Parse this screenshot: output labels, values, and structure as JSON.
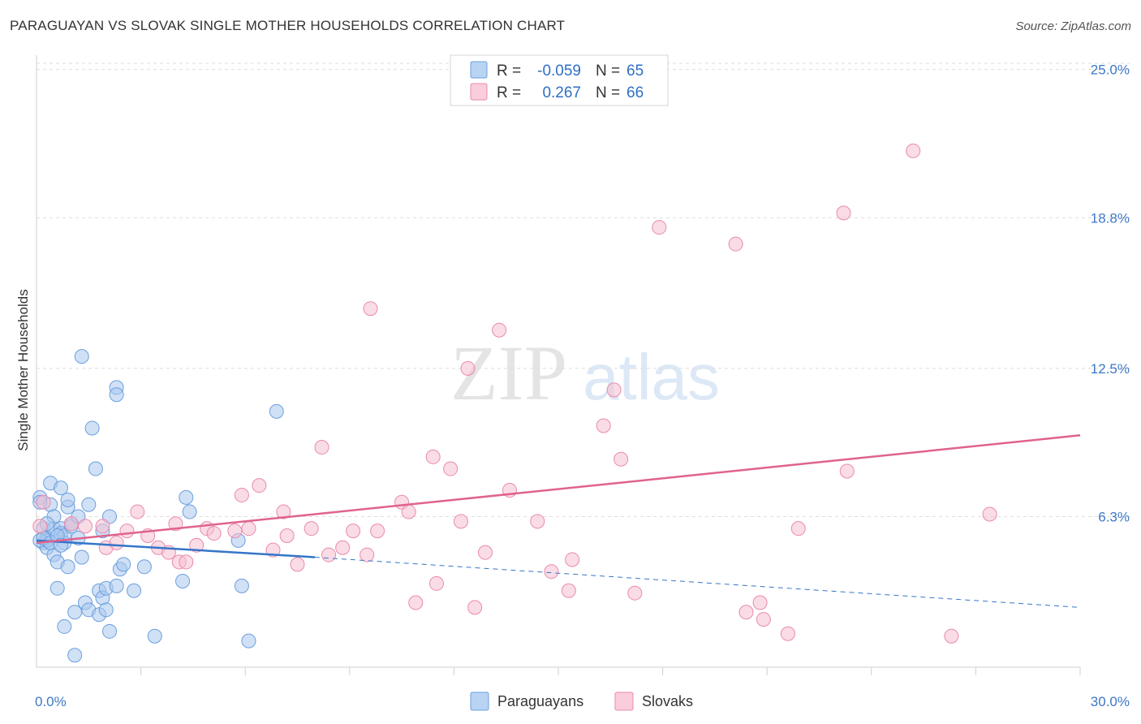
{
  "chart_data": {
    "type": "scatter",
    "title": "PARAGUAYAN VS SLOVAK SINGLE MOTHER HOUSEHOLDS CORRELATION CHART",
    "source": "Source: ZipAtlas.com",
    "ylabel": "Single Mother Households",
    "xlim": [
      0,
      30
    ],
    "ylim": [
      0,
      25.6
    ],
    "x_tick_labels": [
      "0.0%",
      "30.0%"
    ],
    "y_tick_values": [
      6.3,
      12.5,
      18.8,
      25.0
    ],
    "y_tick_labels": [
      "6.3%",
      "12.5%",
      "18.8%",
      "25.0%"
    ],
    "watermark": "ZIPatlas",
    "legend": {
      "entries": [
        {
          "r_label": "R =",
          "r_value": "-0.059",
          "n_label": "N =",
          "n_value": "65"
        },
        {
          "r_label": "R =",
          "r_value": "0.267",
          "n_label": "N =",
          "n_value": "66"
        }
      ]
    },
    "series": [
      {
        "name": "Paraguayans",
        "color": "#a9c8ef",
        "stroke": "#6b9fde",
        "trend_color": "#3475c9",
        "trend": {
          "x0": 0,
          "y0": 5.3,
          "x1": 8.0,
          "y1": 4.6,
          "dash_x1": 30,
          "dash_y1": 2.5
        },
        "points": [
          [
            0.1,
            7.1
          ],
          [
            0.2,
            5.8
          ],
          [
            0.2,
            5.2
          ],
          [
            0.3,
            5.4
          ],
          [
            0.3,
            5.0
          ],
          [
            0.3,
            5.3
          ],
          [
            0.4,
            7.7
          ],
          [
            0.4,
            6.8
          ],
          [
            0.5,
            5.8
          ],
          [
            0.5,
            6.3
          ],
          [
            0.5,
            4.7
          ],
          [
            0.6,
            4.4
          ],
          [
            0.6,
            3.3
          ],
          [
            0.7,
            5.8
          ],
          [
            0.7,
            7.5
          ],
          [
            0.7,
            5.6
          ],
          [
            0.8,
            1.7
          ],
          [
            0.8,
            5.2
          ],
          [
            0.8,
            5.5
          ],
          [
            0.9,
            6.7
          ],
          [
            0.9,
            4.2
          ],
          [
            0.9,
            7.0
          ],
          [
            1.0,
            6.0
          ],
          [
            1.0,
            5.9
          ],
          [
            1.1,
            2.3
          ],
          [
            1.1,
            0.5
          ],
          [
            1.2,
            6.3
          ],
          [
            1.3,
            4.6
          ],
          [
            1.3,
            13.0
          ],
          [
            1.4,
            2.7
          ],
          [
            1.5,
            6.8
          ],
          [
            1.5,
            2.4
          ],
          [
            1.6,
            10.0
          ],
          [
            1.7,
            8.3
          ],
          [
            1.8,
            2.2
          ],
          [
            1.8,
            3.2
          ],
          [
            1.9,
            2.9
          ],
          [
            1.9,
            5.7
          ],
          [
            2.0,
            3.3
          ],
          [
            2.0,
            2.4
          ],
          [
            2.1,
            6.3
          ],
          [
            2.1,
            1.5
          ],
          [
            2.3,
            3.4
          ],
          [
            2.3,
            11.7
          ],
          [
            2.3,
            11.4
          ],
          [
            2.4,
            4.1
          ],
          [
            2.5,
            4.3
          ],
          [
            2.8,
            3.2
          ],
          [
            3.1,
            4.2
          ],
          [
            3.4,
            1.3
          ],
          [
            4.2,
            3.6
          ],
          [
            4.3,
            7.1
          ],
          [
            4.4,
            6.5
          ],
          [
            5.8,
            5.3
          ],
          [
            5.9,
            3.4
          ],
          [
            6.1,
            1.1
          ],
          [
            6.9,
            10.7
          ],
          [
            0.1,
            5.3
          ],
          [
            0.2,
            5.4
          ],
          [
            0.4,
            5.2
          ],
          [
            0.6,
            5.5
          ],
          [
            0.1,
            6.9
          ],
          [
            1.2,
            5.4
          ],
          [
            0.3,
            6.0
          ],
          [
            0.7,
            5.1
          ]
        ]
      },
      {
        "name": "Slovaks",
        "color": "#f6bfd1",
        "stroke": "#ea8aac",
        "trend_color": "#e0628e",
        "trend": {
          "x0": 0,
          "y0": 5.2,
          "x1": 30,
          "y1": 9.7
        },
        "points": [
          [
            0.1,
            5.9
          ],
          [
            0.2,
            6.9
          ],
          [
            1.0,
            6.0
          ],
          [
            1.4,
            5.9
          ],
          [
            1.9,
            5.9
          ],
          [
            2.0,
            5.0
          ],
          [
            2.3,
            5.2
          ],
          [
            2.6,
            5.7
          ],
          [
            2.9,
            6.5
          ],
          [
            3.2,
            5.5
          ],
          [
            3.5,
            5.0
          ],
          [
            3.8,
            4.8
          ],
          [
            4.0,
            6.0
          ],
          [
            4.1,
            4.4
          ],
          [
            4.3,
            4.4
          ],
          [
            4.6,
            5.1
          ],
          [
            4.9,
            5.8
          ],
          [
            5.1,
            5.6
          ],
          [
            5.7,
            5.7
          ],
          [
            5.9,
            7.2
          ],
          [
            6.1,
            5.8
          ],
          [
            6.4,
            7.6
          ],
          [
            6.8,
            4.9
          ],
          [
            7.1,
            6.5
          ],
          [
            7.2,
            5.5
          ],
          [
            7.5,
            4.3
          ],
          [
            7.9,
            5.8
          ],
          [
            8.2,
            9.2
          ],
          [
            8.4,
            4.7
          ],
          [
            8.8,
            5.0
          ],
          [
            9.1,
            5.7
          ],
          [
            9.5,
            4.7
          ],
          [
            9.6,
            15.0
          ],
          [
            9.8,
            5.7
          ],
          [
            10.5,
            6.9
          ],
          [
            10.7,
            6.5
          ],
          [
            10.9,
            2.7
          ],
          [
            11.4,
            8.8
          ],
          [
            11.5,
            3.5
          ],
          [
            11.9,
            8.3
          ],
          [
            12.2,
            6.1
          ],
          [
            12.4,
            12.5
          ],
          [
            12.6,
            2.5
          ],
          [
            12.9,
            4.8
          ],
          [
            13.3,
            14.1
          ],
          [
            13.6,
            7.4
          ],
          [
            14.4,
            6.1
          ],
          [
            14.8,
            4.0
          ],
          [
            15.3,
            3.2
          ],
          [
            15.4,
            4.5
          ],
          [
            16.3,
            10.1
          ],
          [
            16.6,
            11.6
          ],
          [
            16.8,
            8.7
          ],
          [
            17.2,
            3.1
          ],
          [
            17.9,
            18.4
          ],
          [
            20.1,
            17.7
          ],
          [
            20.4,
            2.3
          ],
          [
            20.8,
            2.7
          ],
          [
            20.9,
            2.0
          ],
          [
            21.6,
            1.4
          ],
          [
            21.9,
            5.8
          ],
          [
            23.2,
            19.0
          ],
          [
            23.3,
            8.2
          ],
          [
            25.2,
            21.6
          ],
          [
            26.3,
            1.3
          ],
          [
            27.4,
            6.4
          ]
        ]
      }
    ]
  }
}
